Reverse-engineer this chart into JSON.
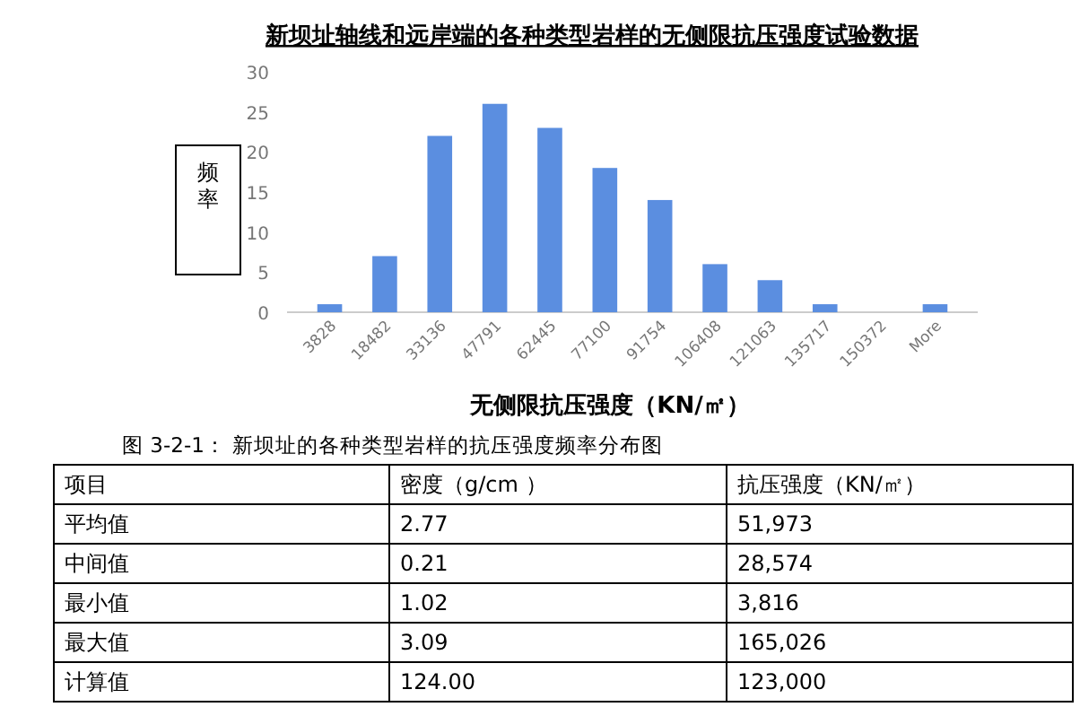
{
  "chart_data": [
    {
      "type": "bar",
      "title": "新坝址轴线和远岸端的各种类型岩样的无侧限抗压强度试验数据",
      "xlabel": "无侧限抗压强度（KN/㎡）",
      "ylabel": "频率",
      "categories": [
        "3828",
        "18482",
        "33136",
        "47791",
        "62445",
        "77100",
        "91754",
        "106408",
        "121063",
        "135717",
        "150372",
        "More"
      ],
      "values": [
        1,
        7,
        22,
        26,
        23,
        18,
        14,
        6,
        4,
        1,
        0,
        1
      ],
      "color": "#5b8ee0",
      "ylim": [
        0,
        30
      ],
      "yticks": [
        0,
        5,
        10,
        15,
        20,
        25,
        30
      ],
      "annotations": [
        "图 3-2-1：  新坝址的各种类型岩样的抗压强度频率分布图"
      ]
    },
    {
      "type": "other",
      "annotations": [
        "项目",
        "密度（g/cm  ）",
        "抗压强度（KN/㎡）",
        "平均值",
        "2.77",
        "51,973",
        "中间值",
        "0.21",
        "28,574",
        "最小值",
        "1.02",
        "3,816",
        "最大值",
        "3.09",
        "165,026",
        "计算值",
        "124.00",
        "123,000"
      ]
    }
  ]
}
